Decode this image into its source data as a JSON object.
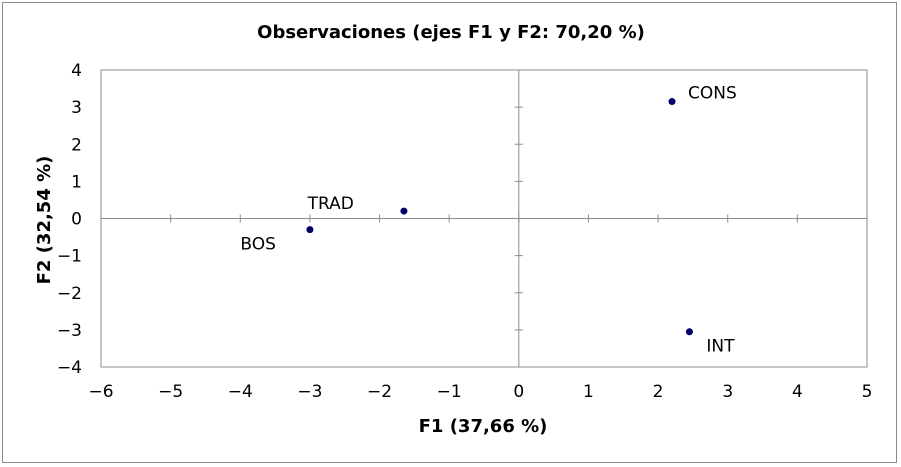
{
  "chart_data": {
    "type": "scatter",
    "title": "Observaciones (ejes F1 y F2: 70,20 %)",
    "xlabel": "F1 (37,66 %)",
    "ylabel": "F2 (32,54 %)",
    "xlim": [
      -6,
      5
    ],
    "ylim": [
      -4,
      4
    ],
    "xticks": [
      -6,
      -5,
      -4,
      -3,
      -2,
      -1,
      0,
      1,
      2,
      3,
      4,
      5
    ],
    "yticks": [
      -4,
      -3,
      -2,
      -1,
      0,
      1,
      2,
      3,
      4
    ],
    "grid": false,
    "legend": "none",
    "marker_color": "#000066",
    "points": [
      {
        "label": "CONS",
        "x": 2.2,
        "y": 3.15
      },
      {
        "label": "TRAD",
        "x": -1.65,
        "y": 0.2
      },
      {
        "label": "BOS",
        "x": -3.0,
        "y": -0.3
      },
      {
        "label": "INT",
        "x": 2.45,
        "y": -3.05
      }
    ]
  }
}
